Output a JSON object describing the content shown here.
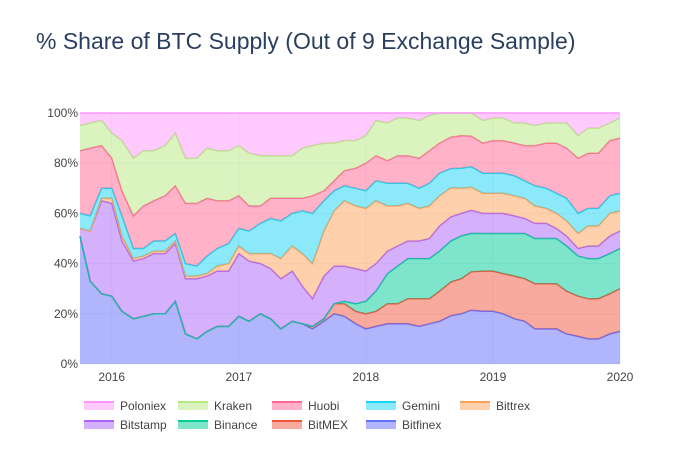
{
  "chart_data": {
    "type": "area",
    "stacked": true,
    "title": "% Share of BTC Supply (Out of 9 Exchange Sample)",
    "xlabel": "",
    "ylabel": "",
    "x_ticks": [
      "2016",
      "2017",
      "2018",
      "2019",
      "2020"
    ],
    "y_ticks": [
      "0%",
      "20%",
      "40%",
      "60%",
      "80%",
      "100%"
    ],
    "ylim": [
      0,
      100
    ],
    "grid": true,
    "legend_position": "bottom",
    "x": [
      2015.75,
      2015.83,
      2015.92,
      2016.0,
      2016.08,
      2016.17,
      2016.25,
      2016.33,
      2016.42,
      2016.5,
      2016.58,
      2016.67,
      2016.75,
      2016.83,
      2016.92,
      2017.0,
      2017.08,
      2017.17,
      2017.25,
      2017.33,
      2017.42,
      2017.5,
      2017.58,
      2017.67,
      2017.75,
      2017.83,
      2017.92,
      2018.0,
      2018.08,
      2018.17,
      2018.25,
      2018.33,
      2018.42,
      2018.5,
      2018.58,
      2018.67,
      2018.75,
      2018.83,
      2018.92,
      2019.0,
      2019.08,
      2019.17,
      2019.25,
      2019.33,
      2019.42,
      2019.5,
      2019.58,
      2019.67,
      2019.75,
      2019.83,
      2019.92,
      2020.0
    ],
    "series": [
      {
        "name": "Bitfinex",
        "color": "#636efa",
        "values": [
          51,
          33,
          28,
          27,
          21,
          18,
          19,
          20,
          20,
          25,
          12,
          10,
          13,
          15,
          15,
          19,
          17,
          20,
          18,
          14,
          17,
          16,
          14,
          17,
          20,
          19,
          16,
          14,
          15,
          16,
          16,
          16,
          15,
          16,
          17,
          20,
          20,
          21,
          21,
          21,
          20,
          18,
          17,
          14,
          14,
          14,
          12,
          11,
          10,
          10,
          12,
          13
        ]
      },
      {
        "name": "BitMEX",
        "color": "#ef553b",
        "values": [
          0,
          0,
          0,
          0,
          0,
          0,
          0,
          0,
          0,
          0,
          0,
          0,
          0,
          0,
          0,
          0,
          0,
          0,
          0,
          0,
          0,
          0,
          1,
          1,
          4,
          5,
          5,
          6,
          6,
          8,
          8,
          10,
          11,
          10,
          12,
          14,
          14,
          15,
          16,
          16,
          16,
          17,
          17,
          18,
          18,
          18,
          17,
          16,
          16,
          16,
          16,
          17
        ]
      },
      {
        "name": "Binance",
        "color": "#00cc96",
        "values": [
          0,
          0,
          0,
          0,
          0,
          0,
          0,
          0,
          0,
          0,
          0,
          0,
          0,
          0,
          0,
          0,
          0,
          0,
          0,
          0,
          0,
          0,
          0,
          0,
          0,
          1,
          3,
          5,
          8,
          12,
          15,
          16,
          16,
          16,
          16,
          17,
          17,
          15,
          15,
          15,
          16,
          17,
          18,
          18,
          18,
          18,
          18,
          16,
          16,
          16,
          16,
          16
        ]
      },
      {
        "name": "Bitstamp",
        "color": "#ab63fa",
        "values": [
          3,
          20,
          37,
          37,
          28,
          23,
          23,
          24,
          24,
          23,
          22,
          24,
          22,
          22,
          22,
          25,
          24,
          20,
          20,
          20,
          20,
          15,
          11,
          17,
          15,
          14,
          14,
          12,
          11,
          9,
          8,
          7,
          7,
          8,
          10,
          10,
          9,
          9,
          8,
          8,
          8,
          7,
          6,
          6,
          6,
          4,
          4,
          3,
          5,
          5,
          7,
          7
        ]
      },
      {
        "name": "Bittrex",
        "color": "#ffa15a",
        "values": [
          0,
          0,
          1,
          2,
          2,
          1,
          1,
          1,
          1,
          1,
          1,
          1,
          1,
          2,
          3,
          3,
          3,
          4,
          6,
          8,
          10,
          13,
          14,
          18,
          22,
          26,
          25,
          25,
          25,
          18,
          16,
          15,
          13,
          13,
          12,
          12,
          10,
          9,
          8,
          8,
          8,
          8,
          8,
          7,
          6,
          6,
          6,
          6,
          8,
          8,
          9,
          8
        ]
      },
      {
        "name": "Gemini",
        "color": "#19d3f3",
        "values": [
          6,
          6,
          4,
          4,
          8,
          4,
          3,
          4,
          4,
          3,
          5,
          4,
          7,
          7,
          8,
          7,
          9,
          12,
          14,
          15,
          13,
          17,
          20,
          12,
          8,
          6,
          7,
          7,
          8,
          9,
          9,
          8,
          8,
          9,
          9,
          8,
          8,
          8,
          8,
          8,
          8,
          8,
          7,
          8,
          8,
          8,
          9,
          8,
          7,
          7,
          7,
          7
        ]
      },
      {
        "name": "Huobi",
        "color": "#ff6692",
        "values": [
          25,
          27,
          17,
          12,
          10,
          13,
          17,
          16,
          18,
          19,
          24,
          25,
          23,
          19,
          17,
          13,
          10,
          7,
          8,
          9,
          6,
          5,
          7,
          4,
          4,
          6,
          8,
          11,
          10,
          9,
          11,
          11,
          12,
          13,
          12,
          13,
          13,
          12,
          12,
          13,
          13,
          13,
          14,
          16,
          18,
          20,
          20,
          22,
          22,
          22,
          22,
          22
        ]
      },
      {
        "name": "Kraken",
        "color": "#b6e880",
        "values": [
          10,
          10,
          10,
          10,
          20,
          23,
          22,
          20,
          20,
          21,
          18,
          18,
          20,
          20,
          20,
          20,
          21,
          20,
          17,
          17,
          17,
          20,
          20,
          19,
          15,
          12,
          11,
          11,
          14,
          15,
          15,
          15,
          15,
          14,
          12,
          10,
          9,
          9,
          9,
          9,
          9,
          8,
          9,
          8,
          8,
          8,
          10,
          9,
          10,
          10,
          7,
          8
        ]
      },
      {
        "name": "Poloniex",
        "color": "#ff97ff",
        "values": [
          5,
          4,
          3,
          8,
          11,
          18,
          15,
          15,
          13,
          8,
          18,
          18,
          14,
          15,
          15,
          13,
          16,
          17,
          17,
          17,
          17,
          14,
          13,
          12,
          12,
          11,
          11,
          9,
          3,
          4,
          2,
          2,
          3,
          1,
          0,
          0,
          0,
          0,
          3,
          2,
          2,
          4,
          4,
          5,
          4,
          4,
          4,
          9,
          6,
          6,
          4,
          2
        ]
      }
    ]
  },
  "legend": {
    "order": [
      "Poloniex",
      "Kraken",
      "Huobi",
      "Gemini",
      "Bittrex",
      "Bitstamp",
      "Binance",
      "BitMEX",
      "Bitfinex"
    ]
  }
}
